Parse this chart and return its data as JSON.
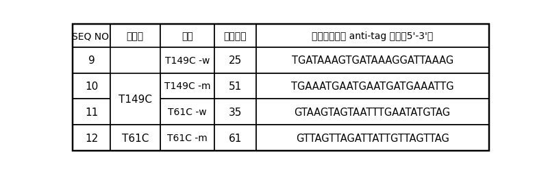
{
  "headers": [
    "SEQ NO.",
    "基因型",
    "类型",
    "微球编号",
    "微球上对应的 anti-tag 序列（5'-3'）"
  ],
  "rows": [
    [
      "9",
      "T149C",
      "T149C -w",
      "25",
      "TGATAAAGTGATAAAGGATTAAAG"
    ],
    [
      "10",
      "T149C",
      "T149C -m",
      "51",
      "TGAAATGAATGAATGATGAAATTG"
    ],
    [
      "11",
      "T61C",
      "T61C -w",
      "35",
      "GTAAGTAGTAATTTGAATATGTAG"
    ],
    [
      "12",
      "T61C",
      "T61C -m",
      "61",
      "GTTAGTTAGATTATTGTTAGTTAG"
    ]
  ],
  "col_props": [
    0.09,
    0.12,
    0.13,
    0.1,
    0.56
  ],
  "background_color": "#ffffff",
  "border_color": "#000000",
  "text_color": "#000000",
  "fig_width": 8.0,
  "fig_height": 2.55
}
